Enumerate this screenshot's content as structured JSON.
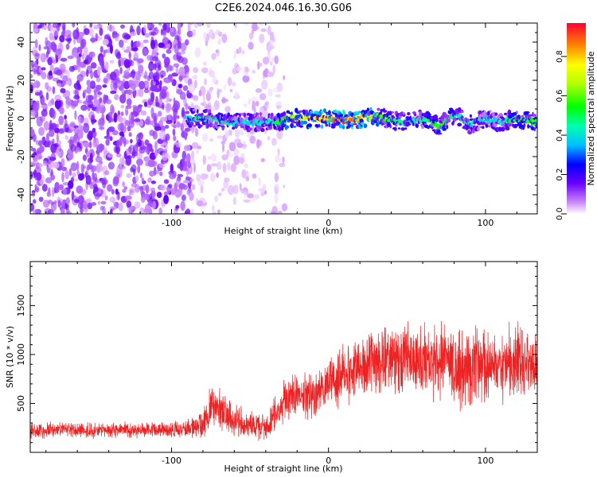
{
  "title": "C2E6.2024.046.16.30.G06",
  "chart_data": [
    {
      "type": "heatmap",
      "xlabel": "Height of straight line (km)",
      "ylabel": "Frequency (Hz)",
      "xlim": [
        -190,
        133
      ],
      "ylim": [
        -50,
        50
      ],
      "xticks": [
        -100,
        0,
        100
      ],
      "yticks": [
        -40,
        -20,
        0,
        20,
        40
      ],
      "colorbar": {
        "label": "Normalized spectral amplitude",
        "range": [
          0,
          0.97
        ],
        "ticks": [
          0.0,
          0.2,
          0.4,
          0.6,
          0.8
        ]
      },
      "regions": [
        {
          "x": [
            -190,
            -88
          ],
          "description_freq_spread": [
            -50,
            50
          ],
          "amplitude": 0.12
        },
        {
          "x": [
            -88,
            -28
          ],
          "description_freq_spread": [
            -50,
            50
          ],
          "amplitude": 0.04
        },
        {
          "x": [
            -88,
            133
          ],
          "description_freq_spread": [
            -6,
            6
          ],
          "amplitude": 0.35
        }
      ],
      "ridge": {
        "x": [
          -90,
          -80,
          -70,
          -60,
          -50,
          -40,
          -30,
          -20,
          -10,
          0,
          10,
          20,
          30,
          40,
          50,
          60,
          70,
          80,
          90,
          100,
          110,
          120,
          130
        ],
        "freq": [
          0,
          0,
          -1,
          -2,
          -2,
          -2,
          -1,
          0,
          0,
          0,
          -1,
          0,
          1,
          -1,
          -2,
          0,
          -4,
          2,
          -3,
          0,
          -2,
          0,
          -2
        ],
        "amplitude": [
          0.45,
          0.5,
          0.5,
          0.45,
          0.4,
          0.45,
          0.6,
          0.75,
          0.85,
          0.9,
          0.95,
          0.9,
          0.75,
          0.55,
          0.45,
          0.5,
          0.6,
          0.5,
          0.45,
          0.4,
          0.45,
          0.55,
          0.6
        ]
      }
    },
    {
      "type": "line",
      "xlabel": "Height of straight line (km)",
      "ylabel": "SNR (10 * v/v)",
      "xlim": [
        -190,
        133
      ],
      "ylim": [
        0,
        1950
      ],
      "xticks": [
        -100,
        0,
        100
      ],
      "yticks": [
        500,
        1000,
        1500
      ],
      "color": "#ee2222",
      "series": [
        {
          "x": [
            -190,
            -170,
            -150,
            -130,
            -110,
            -90,
            -80,
            -75,
            -70,
            -60,
            -50,
            -40,
            -30,
            -20,
            -10,
            0,
            10,
            20,
            30,
            40,
            50,
            60,
            70,
            80,
            90,
            100,
            110,
            120,
            130
          ],
          "values": [
            220,
            230,
            220,
            230,
            230,
            240,
            290,
            500,
            430,
            320,
            280,
            260,
            480,
            600,
            580,
            700,
            800,
            880,
            940,
            950,
            960,
            920,
            950,
            900,
            830,
            930,
            880,
            920,
            900
          ],
          "spread": [
            80,
            80,
            80,
            80,
            80,
            90,
            160,
            220,
            220,
            160,
            140,
            130,
            220,
            220,
            250,
            260,
            280,
            320,
            330,
            340,
            380,
            350,
            380,
            380,
            400,
            380,
            350,
            380,
            330
          ]
        }
      ]
    }
  ]
}
